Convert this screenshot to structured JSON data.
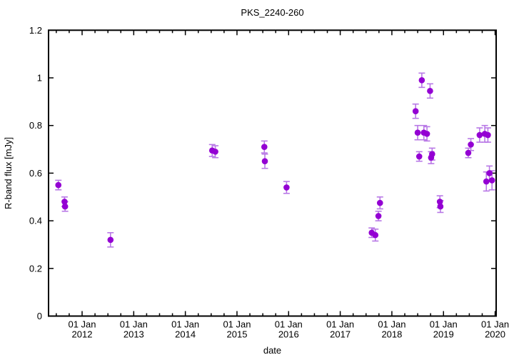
{
  "figure": {
    "title": "PKS_2240-260",
    "xlabel": "date",
    "ylabel": "R-band flux [mJy]"
  },
  "colors": {
    "background": "#ffffff",
    "axis": "#000000",
    "text": "#000000",
    "point": "#9400d3",
    "errorbar": "#b878e6"
  },
  "chart_data": {
    "type": "scatter",
    "title": "PKS_2240-260",
    "xlabel": "date",
    "ylabel": "R-band flux [mJy]",
    "grid": false,
    "legend": "none",
    "x_axis": {
      "kind": "date",
      "range_years": [
        2011.35,
        2020.02
      ],
      "minor_tick_step_years": 0.25,
      "major_ticks": [
        {
          "year": 2012,
          "line1": "01 Jan",
          "line2": "2012"
        },
        {
          "year": 2013,
          "line1": "01 Jan",
          "line2": "2013"
        },
        {
          "year": 2014,
          "line1": "01 Jan",
          "line2": "2014"
        },
        {
          "year": 2015,
          "line1": "01 Jan",
          "line2": "2015"
        },
        {
          "year": 2016,
          "line1": "01 Jan",
          "line2": "2016"
        },
        {
          "year": 2017,
          "line1": "01 Jan",
          "line2": "2017"
        },
        {
          "year": 2018,
          "line1": "01 Jan",
          "line2": "2018"
        },
        {
          "year": 2019,
          "line1": "01 Jan",
          "line2": "2019"
        },
        {
          "year": 2020,
          "line1": "01 Jan",
          "line2": "2020"
        }
      ]
    },
    "y_axis": {
      "range": [
        0,
        1.2
      ],
      "ticks": [
        {
          "value": 0,
          "label": "0"
        },
        {
          "value": 0.2,
          "label": "0.2"
        },
        {
          "value": 0.4,
          "label": "0.4"
        },
        {
          "value": 0.6,
          "label": "0.6"
        },
        {
          "value": 0.8,
          "label": "0.8"
        },
        {
          "value": 1,
          "label": "1"
        },
        {
          "value": 1.2,
          "label": "1.2"
        }
      ]
    },
    "series": [
      {
        "name": "R-band flux",
        "marker": "filled-circle",
        "color": "#9400d3",
        "errorbar_color": "#b878e6",
        "points": [
          {
            "year": 2011.54,
            "flux": 0.55,
            "err": 0.02
          },
          {
            "year": 2011.66,
            "flux": 0.48,
            "err": 0.02
          },
          {
            "year": 2011.67,
            "flux": 0.46,
            "err": 0.02
          },
          {
            "year": 2012.55,
            "flux": 0.32,
            "err": 0.03
          },
          {
            "year": 2014.52,
            "flux": 0.695,
            "err": 0.025
          },
          {
            "year": 2014.58,
            "flux": 0.69,
            "err": 0.025
          },
          {
            "year": 2015.53,
            "flux": 0.71,
            "err": 0.025
          },
          {
            "year": 2015.54,
            "flux": 0.65,
            "err": 0.03
          },
          {
            "year": 2015.96,
            "flux": 0.54,
            "err": 0.025
          },
          {
            "year": 2017.61,
            "flux": 0.35,
            "err": 0.02
          },
          {
            "year": 2017.68,
            "flux": 0.34,
            "err": 0.025
          },
          {
            "year": 2017.74,
            "flux": 0.42,
            "err": 0.02
          },
          {
            "year": 2017.77,
            "flux": 0.475,
            "err": 0.025
          },
          {
            "year": 2018.46,
            "flux": 0.86,
            "err": 0.03
          },
          {
            "year": 2018.5,
            "flux": 0.77,
            "err": 0.03
          },
          {
            "year": 2018.53,
            "flux": 0.67,
            "err": 0.02
          },
          {
            "year": 2018.58,
            "flux": 0.99,
            "err": 0.03
          },
          {
            "year": 2018.62,
            "flux": 0.77,
            "err": 0.03
          },
          {
            "year": 2018.68,
            "flux": 0.765,
            "err": 0.03
          },
          {
            "year": 2018.74,
            "flux": 0.945,
            "err": 0.03
          },
          {
            "year": 2018.76,
            "flux": 0.665,
            "err": 0.025
          },
          {
            "year": 2018.78,
            "flux": 0.68,
            "err": 0.025
          },
          {
            "year": 2018.93,
            "flux": 0.48,
            "err": 0.025
          },
          {
            "year": 2018.94,
            "flux": 0.46,
            "err": 0.025
          },
          {
            "year": 2019.48,
            "flux": 0.685,
            "err": 0.02
          },
          {
            "year": 2019.53,
            "flux": 0.72,
            "err": 0.025
          },
          {
            "year": 2019.7,
            "flux": 0.76,
            "err": 0.03
          },
          {
            "year": 2019.8,
            "flux": 0.765,
            "err": 0.035
          },
          {
            "year": 2019.83,
            "flux": 0.565,
            "err": 0.04
          },
          {
            "year": 2019.86,
            "flux": 0.76,
            "err": 0.03
          },
          {
            "year": 2019.89,
            "flux": 0.6,
            "err": 0.03
          },
          {
            "year": 2019.94,
            "flux": 0.57,
            "err": 0.04
          }
        ]
      }
    ]
  }
}
